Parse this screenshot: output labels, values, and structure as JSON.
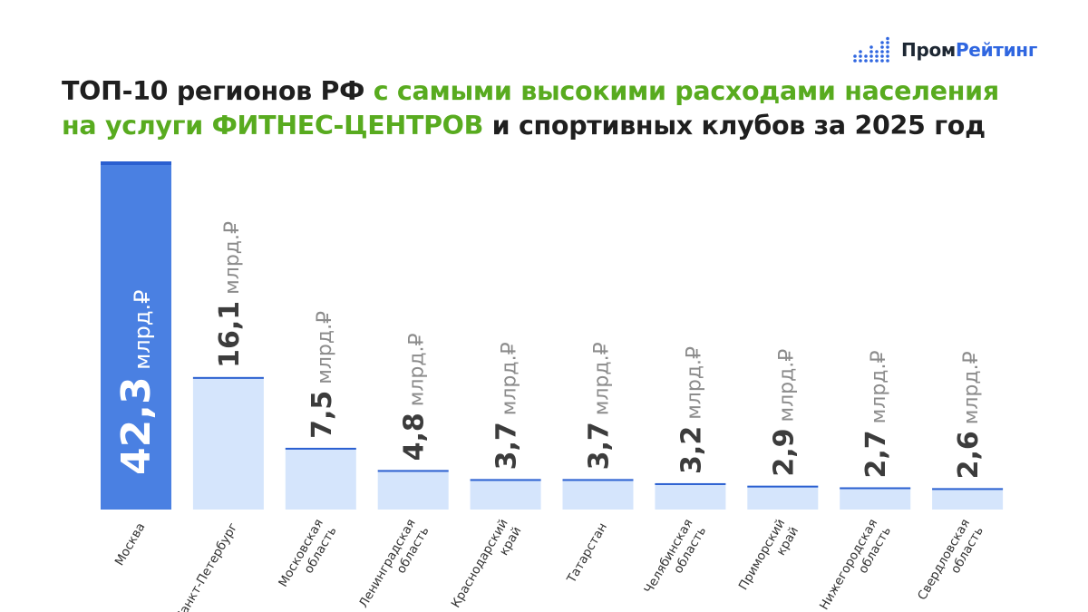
{
  "brand": {
    "name_part1": "Пром",
    "name_part2": "Рейтинг",
    "colors": {
      "dark": "#1d2733",
      "blue": "#2f66e0"
    },
    "icon": "bar-dots-logo-icon"
  },
  "title": {
    "line1_dark": "ТОП-10 регионов РФ ",
    "line1_green": "с самыми высокими расходами населения",
    "line2_green_a": "на услуги ",
    "line2_green_b": "ФИТНЕС-ЦЕНТРОВ",
    "line2_dark": " и спортивных клубов за 2025 год",
    "colors": {
      "dark": "#1f1f1f",
      "green": "#58ab1f"
    }
  },
  "chart_data": {
    "type": "bar",
    "unit": "млрд.₽",
    "categories": [
      "Москва",
      "Санкт-Петербург",
      "Московская\nобласть",
      "Ленинградская\nобласть",
      "Краснодарский\nкрай",
      "Татарстан",
      "Челябинская\nобласть",
      "Приморский\nкрай",
      "Нижегородская\nобласть",
      "Свердловская\nобласть"
    ],
    "values": [
      42.3,
      16.1,
      7.5,
      4.8,
      3.7,
      3.7,
      3.2,
      2.9,
      2.7,
      2.6
    ],
    "value_labels": [
      "42,3",
      "16,1",
      "7,5",
      "4,8",
      "3,7",
      "3,7",
      "3,2",
      "2,9",
      "2,7",
      "2,6"
    ],
    "highlight_index": 0,
    "colors": {
      "highlight_bar": "#4a80e2",
      "bar": "#d5e5fc",
      "bar_top_line": "#2a5fd0",
      "value_number": "#3c3c3c",
      "unit_text": "#8c8c8c",
      "highlight_text": "#ffffff"
    },
    "grid": false,
    "legend": "none"
  }
}
